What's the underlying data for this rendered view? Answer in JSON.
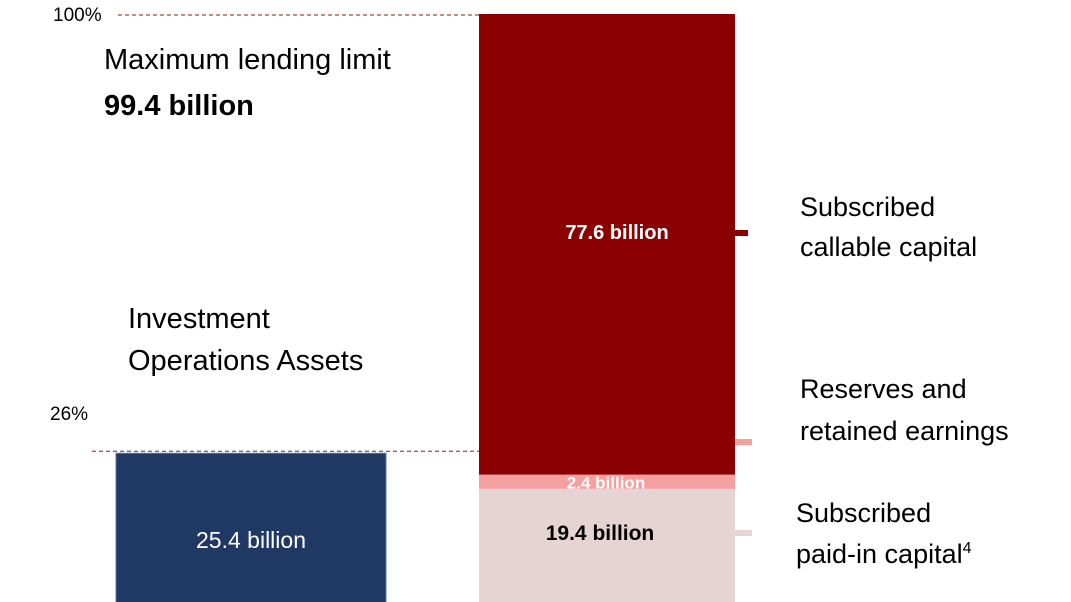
{
  "chart_data": {
    "type": "bar",
    "title": "",
    "xlabel": "",
    "ylabel": "",
    "ylim": [
      0,
      100
    ],
    "y_tick_labels": [
      "100%",
      "26%"
    ],
    "colors": {
      "investment": "#1f3864",
      "callable": "#8b0000",
      "reserves": "#f4a0a0",
      "paid_in": "#e6d3d3",
      "reference_line": "#8b1a1a"
    },
    "bars": [
      {
        "name": "Investment Operations Assets",
        "caption_line1": "Investment",
        "caption_line2": "Operations Assets",
        "segments": [
          {
            "name": "investment-assets",
            "value": 25.4,
            "label": "25.4 billion"
          }
        ]
      },
      {
        "name": "Maximum lending limit",
        "caption_line1": "Maximum lending limit",
        "caption_total": "99.4 billion",
        "segments": [
          {
            "name": "paid-in",
            "value": 19.4,
            "label": "19.4 billion"
          },
          {
            "name": "reserves",
            "value": 2.4,
            "label": "2.4  billion"
          },
          {
            "name": "callable",
            "value": 77.6,
            "label": "77.6 billion"
          }
        ]
      }
    ],
    "legend": {
      "callable_line1": "Subscribed",
      "callable_line2": "callable capital",
      "reserves_line1": "Reserves and",
      "reserves_line2": "retained earnings",
      "paidin_line1": "Subscribed",
      "paidin_line2": "paid-in capital",
      "paidin_footnote": "4"
    }
  }
}
